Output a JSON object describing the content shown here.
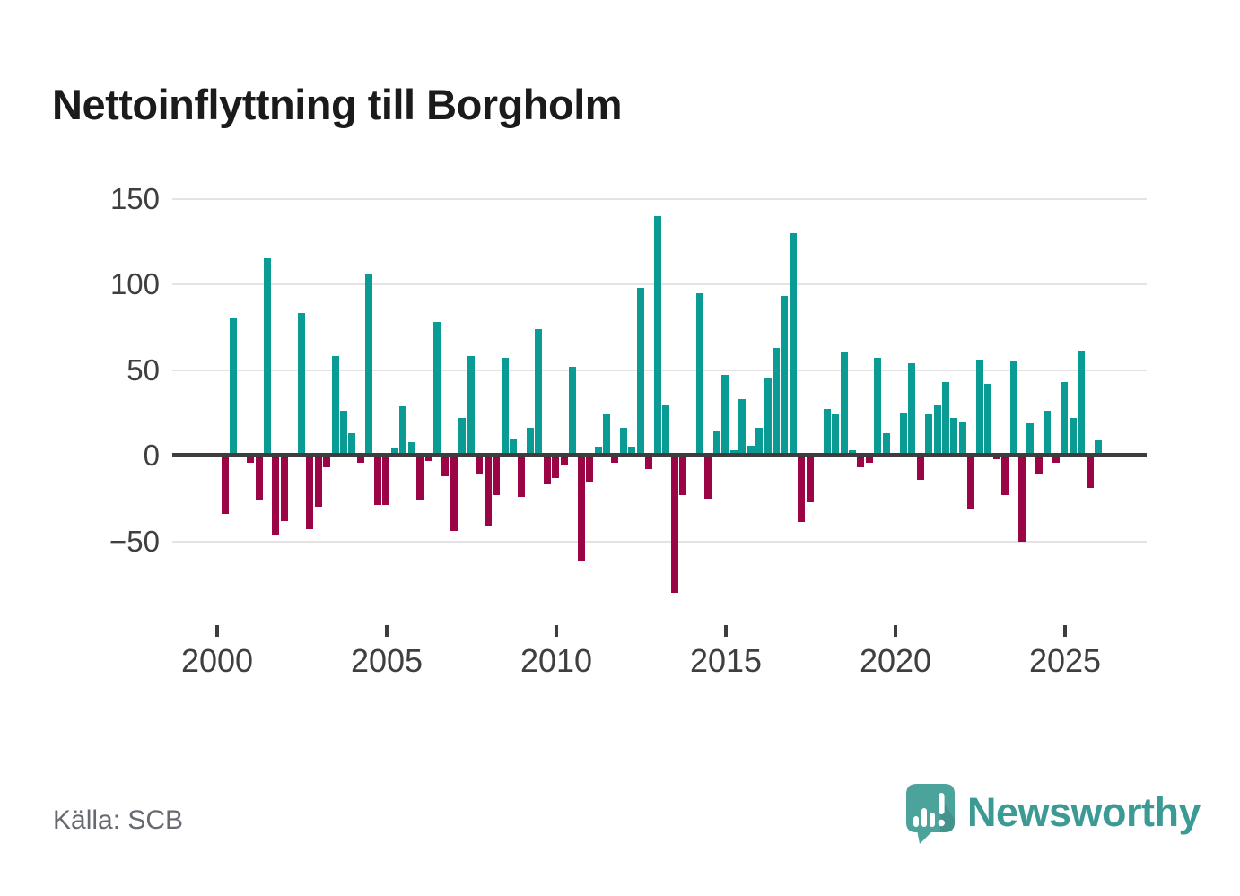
{
  "title": "Nettoinflyttning till Borgholm",
  "source": "Källa: SCB",
  "brand": {
    "name": "Newsworthy",
    "icon": "newsworthy-speech-bubble-chart-icon"
  },
  "colors": {
    "positive": "#0A9B94",
    "negative": "#9B0546",
    "grid": "#E3E3E3",
    "axis": "#3D3D3D",
    "tick_text": "#3F3F3F",
    "title_text": "#1B1B1B",
    "source_text": "#66696F",
    "brand_teal": "#3B9A94",
    "icon_teal": "#4CA39C"
  },
  "chart_data": {
    "type": "bar",
    "title": "Nettoinflyttning till Borgholm",
    "period": "quarterly",
    "xlabel": "",
    "ylabel": "",
    "x_tick_labels": [
      "2000",
      "2005",
      "2010",
      "2015",
      "2020",
      "2025"
    ],
    "y_ticks": [
      150,
      100,
      50,
      0,
      -50
    ],
    "y_tick_labels": [
      "150",
      "100",
      "50",
      "0",
      "−50"
    ],
    "ylim": [
      -85,
      155
    ],
    "grid": "horizontal",
    "legend": "none",
    "series_years": [
      {
        "year": 2000,
        "values": [
          -34,
          80,
          0,
          -4
        ]
      },
      {
        "year": 2001,
        "values": [
          -26,
          115,
          -46,
          -38
        ]
      },
      {
        "year": 2002,
        "values": [
          0,
          83,
          -43,
          -30
        ]
      },
      {
        "year": 2003,
        "values": [
          -7,
          58,
          26,
          13
        ]
      },
      {
        "year": 2004,
        "values": [
          -4,
          106,
          -29,
          -29
        ]
      },
      {
        "year": 2005,
        "values": [
          4,
          29,
          8,
          -26
        ]
      },
      {
        "year": 2006,
        "values": [
          -3,
          78,
          -12,
          -44
        ]
      },
      {
        "year": 2007,
        "values": [
          22,
          58,
          -11,
          -41
        ]
      },
      {
        "year": 2008,
        "values": [
          -23,
          57,
          10,
          -24
        ]
      },
      {
        "year": 2009,
        "values": [
          16,
          74,
          -17,
          -13
        ]
      },
      {
        "year": 2010,
        "values": [
          -6,
          52,
          -62,
          -15
        ]
      },
      {
        "year": 2011,
        "values": [
          5,
          24,
          -4,
          16
        ]
      },
      {
        "year": 2012,
        "values": [
          5,
          98,
          -8,
          140
        ]
      },
      {
        "year": 2013,
        "values": [
          30,
          -80,
          -23,
          0
        ]
      },
      {
        "year": 2014,
        "values": [
          95,
          -25,
          14,
          47
        ]
      },
      {
        "year": 2015,
        "values": [
          3,
          33,
          6,
          16
        ]
      },
      {
        "year": 2016,
        "values": [
          45,
          63,
          93,
          130
        ]
      },
      {
        "year": 2017,
        "values": [
          -39,
          -27,
          0,
          27
        ]
      },
      {
        "year": 2018,
        "values": [
          24,
          60,
          3,
          -7
        ]
      },
      {
        "year": 2019,
        "values": [
          -4,
          57,
          13,
          0
        ]
      },
      {
        "year": 2020,
        "values": [
          25,
          54,
          -14,
          24
        ]
      },
      {
        "year": 2021,
        "values": [
          30,
          43,
          22,
          20
        ]
      },
      {
        "year": 2022,
        "values": [
          -31,
          56,
          42,
          -2
        ]
      },
      {
        "year": 2023,
        "values": [
          -23,
          55,
          -50,
          19
        ]
      },
      {
        "year": 2024,
        "values": [
          -11,
          26,
          -4,
          43
        ]
      },
      {
        "year": 2025,
        "values": [
          22,
          61,
          -19,
          9
        ]
      }
    ]
  }
}
